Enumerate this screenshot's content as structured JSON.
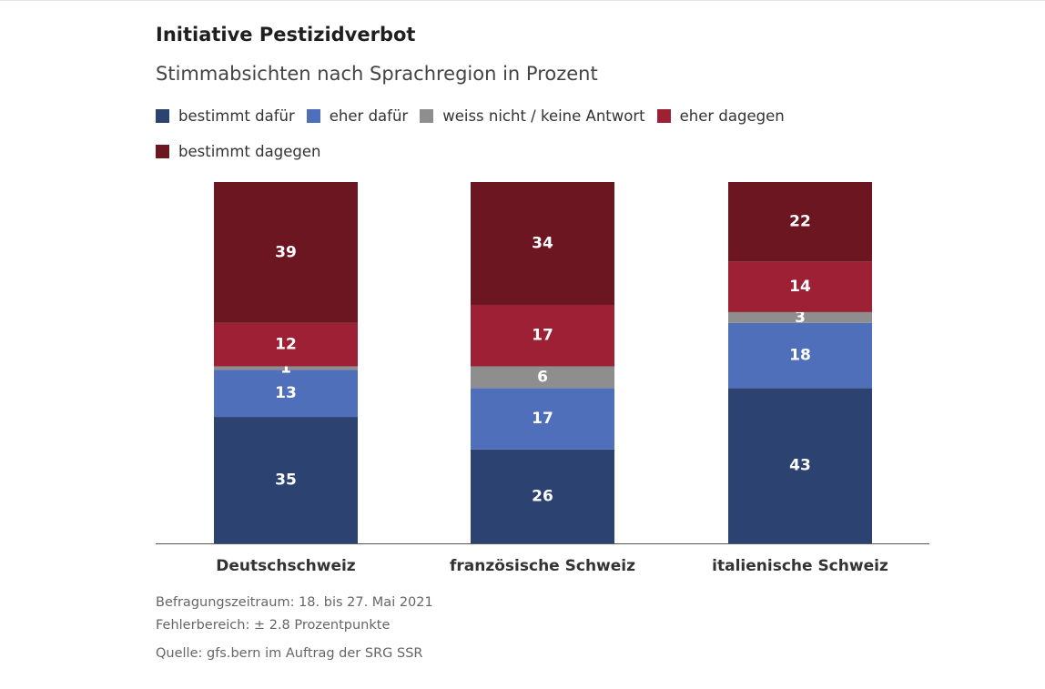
{
  "title": "Initiative Pestizidverbot",
  "subtitle": "Stimmabsichten nach Sprachregion in Prozent",
  "chart_data": {
    "type": "bar",
    "stacked": true,
    "title": "Initiative Pestizidverbot",
    "subtitle": "Stimmabsichten nach Sprachregion in Prozent",
    "categories": [
      "Deutschschweiz",
      "französische Schweiz",
      "italienische Schweiz"
    ],
    "series": [
      {
        "name": "bestimmt dafür",
        "color": "#2c4270",
        "values": [
          35,
          26,
          43
        ]
      },
      {
        "name": "eher dafür",
        "color": "#4f6fba",
        "values": [
          13,
          17,
          18
        ]
      },
      {
        "name": "weiss nicht / keine Antwort",
        "color": "#8e8e8e",
        "values": [
          1,
          6,
          3
        ]
      },
      {
        "name": "eher dagegen",
        "color": "#9e2035",
        "values": [
          12,
          17,
          14
        ]
      },
      {
        "name": "bestimmt dagegen",
        "color": "#6b1620",
        "values": [
          39,
          34,
          22
        ]
      }
    ],
    "ylim": [
      0,
      100
    ],
    "grid": false,
    "legend_position": "top-left"
  },
  "footer": {
    "period": "Befragungszeitraum: 18. bis 27. Mai 2021",
    "error": "Fehlerbereich: ± 2.8 Prozentpunkte",
    "source": "Quelle: gfs.bern im Auftrag der SRG SSR"
  }
}
